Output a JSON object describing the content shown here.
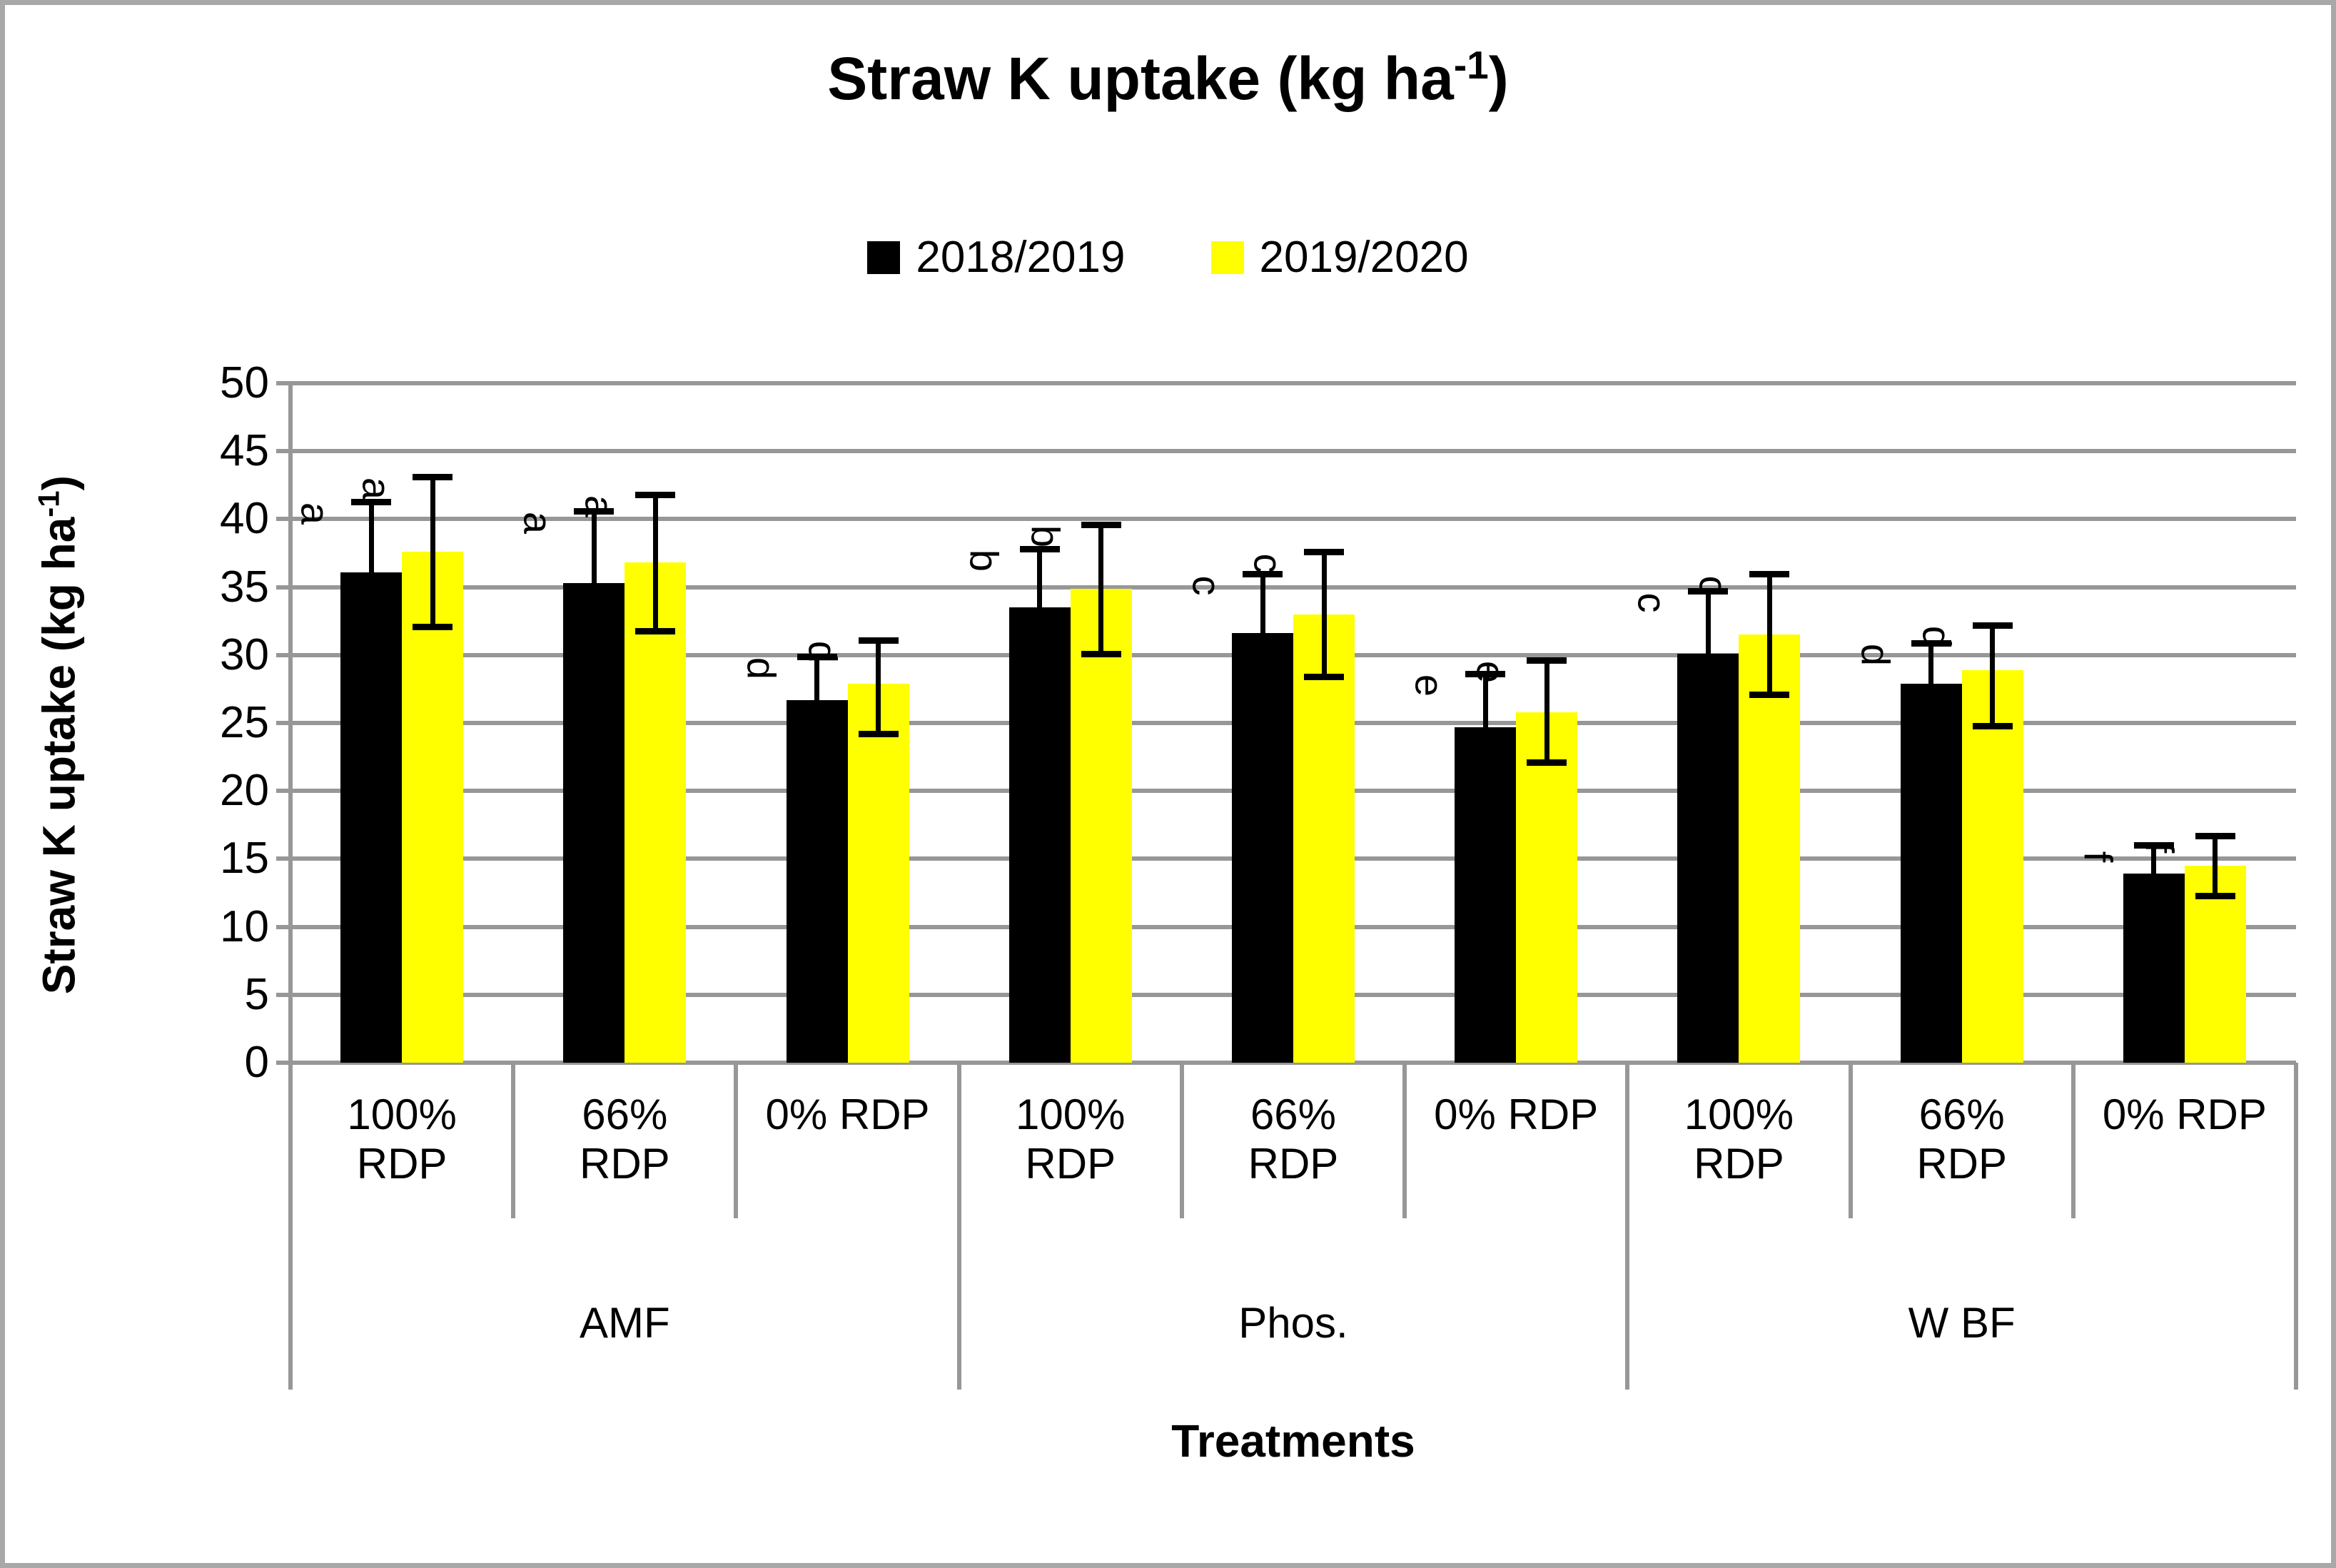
{
  "title": {
    "main": "Straw K uptake (kg ha",
    "sup": "-1",
    "end": ")"
  },
  "legend": {
    "items": [
      {
        "label": "2018/2019",
        "color": "#000000"
      },
      {
        "label": "2019/2020",
        "color": "#FFFF00"
      }
    ]
  },
  "y_axis": {
    "label_main": "Straw K uptake (kg ha",
    "label_sup": "-1",
    "label_end": ")",
    "ticks": [
      0,
      5,
      10,
      15,
      20,
      25,
      30,
      35,
      40,
      45,
      50
    ]
  },
  "x_axis": {
    "title": "Treatments",
    "groups": [
      "AMF",
      "Phos.",
      "W BF"
    ],
    "categories": [
      "100% RDP",
      "66% RDP",
      "0% RDP"
    ]
  },
  "chart_data": {
    "type": "bar",
    "title": "Straw K uptake (kg ha-1)",
    "ylabel": "Straw K uptake (kg ha-1)",
    "xlabel": "Treatments",
    "ylim": [
      0,
      50
    ],
    "ytick_step": 5,
    "grid": true,
    "legend_position": "top-center",
    "groups": [
      "AMF",
      "Phos.",
      "W BF"
    ],
    "categories_per_group": [
      "100% RDP",
      "66% RDP",
      "0% RDP"
    ],
    "categories_flat": [
      "AMF 100% RDP",
      "AMF 66% RDP",
      "AMF 0% RDP",
      "Phos. 100% RDP",
      "Phos. 66% RDP",
      "Phos. 0% RDP",
      "W BF 100% RDP",
      "W BF 66% RDP",
      "W BF 0% RDP"
    ],
    "colors": {
      "grid": "#979797",
      "axis": "#979797",
      "error_bar": "#000000"
    },
    "error_bars": true,
    "sig_letters_rotated_90deg": true,
    "series": [
      {
        "name": "2018/2019",
        "color": "#000000",
        "values": [
          36.1,
          35.3,
          26.7,
          33.5,
          31.6,
          24.7,
          30.1,
          27.9,
          13.9
        ],
        "err_hi": [
          41.3,
          40.6,
          29.9,
          37.8,
          36.0,
          28.6,
          34.7,
          30.9,
          16.0
        ],
        "err_lo": [
          null,
          null,
          null,
          null,
          null,
          null,
          null,
          null,
          null
        ],
        "sig_letters": [
          "a",
          "a",
          "d",
          "b",
          "c",
          "e",
          "c",
          "d",
          "f"
        ]
      },
      {
        "name": "2019/2020",
        "color": "#FFFF00",
        "values": [
          37.6,
          36.8,
          27.9,
          34.9,
          33.0,
          25.8,
          31.5,
          28.9,
          14.5
        ],
        "err_hi": [
          43.1,
          41.8,
          31.1,
          39.6,
          37.6,
          29.6,
          36.0,
          32.2,
          16.7
        ],
        "err_lo": [
          32.1,
          31.8,
          24.2,
          30.1,
          28.4,
          22.1,
          27.1,
          24.8,
          12.3
        ],
        "sig_letters": [
          "a",
          "a",
          "d",
          "b",
          "c",
          "e",
          "c",
          "d",
          "f"
        ]
      }
    ]
  }
}
